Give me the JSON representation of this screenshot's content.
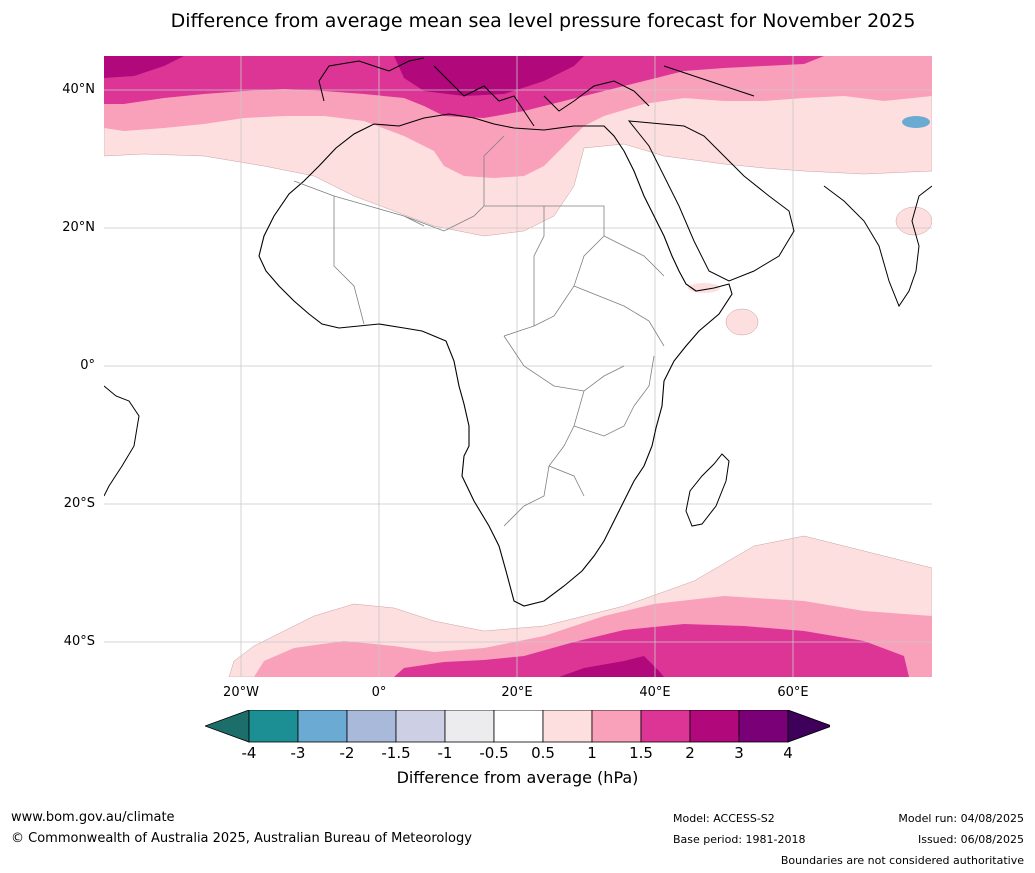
{
  "title": "Difference from average mean sea level pressure forecast for November 2025",
  "map": {
    "lat_labels": [
      "40°N",
      "20°N",
      "0°",
      "20°S",
      "40°S"
    ],
    "lon_labels": [
      "20°W",
      "0°",
      "20°E",
      "40°E",
      "60°E"
    ],
    "region": "Africa"
  },
  "legend": {
    "ticks": [
      "-4",
      "-3",
      "-2",
      "-1.5",
      "-1",
      "-0.5",
      "0.5",
      "1",
      "1.5",
      "2",
      "3",
      "4"
    ],
    "colors": [
      "#1b6e6a",
      "#1b8f94",
      "#6aaad3",
      "#a8b9da",
      "#cdd0e5",
      "#ecebee",
      "#ffffff",
      "#fedfe0",
      "#f9a0bb",
      "#dc3596",
      "#b1087c",
      "#7a0077",
      "#3e005a"
    ],
    "label": "Difference from average (hPa)"
  },
  "footer": {
    "website": "www.bom.gov.au/climate",
    "copyright": "© Commonwealth of Australia 2025, Australian Bureau of Meteorology",
    "model": "Model: ACCESS-S2",
    "base_period": "Base period: 1981-2018",
    "model_run": "Model run: 04/08/2025",
    "issued": "Issued: 06/08/2025",
    "disclaimer": "Boundaries are not considered authoritative"
  }
}
